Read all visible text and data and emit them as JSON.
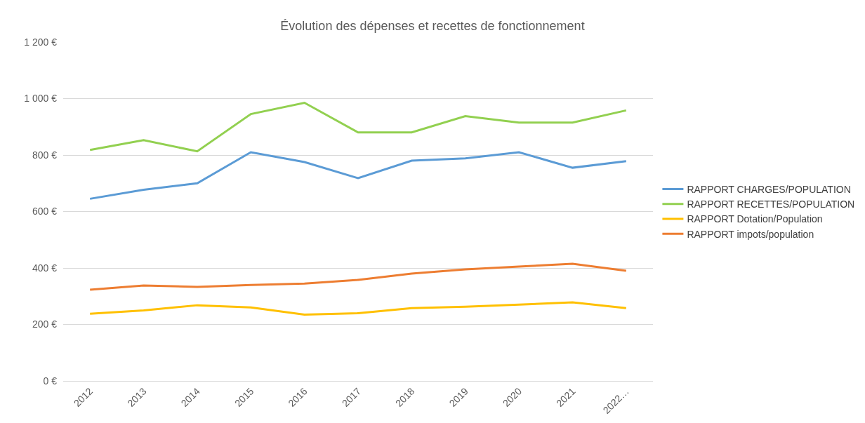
{
  "chart_data": {
    "type": "line",
    "title": "Évolution des dépenses et recettes de fonctionnement",
    "categories": [
      "2012",
      "2013",
      "2014",
      "2015",
      "2016",
      "2017",
      "2018",
      "2019",
      "2020",
      "2021",
      "2022…"
    ],
    "series": [
      {
        "name": "RAPPORT CHARGES/POPULATION",
        "color": "#5b9bd5",
        "values": [
          645,
          677,
          700,
          810,
          775,
          718,
          780,
          788,
          810,
          755,
          778
        ]
      },
      {
        "name": "RAPPORT RECETTES/POPULATION",
        "color": "#92d050",
        "values": [
          818,
          853,
          813,
          945,
          985,
          880,
          880,
          938,
          915,
          915,
          958
        ]
      },
      {
        "name": "RAPPORT Dotation/Population",
        "color": "#ffc000",
        "values": [
          238,
          250,
          268,
          260,
          235,
          240,
          258,
          263,
          270,
          278,
          258
        ]
      },
      {
        "name": "RAPPORT impots/population",
        "color": "#ed7d31",
        "values": [
          323,
          338,
          333,
          340,
          345,
          358,
          380,
          395,
          405,
          415,
          390
        ]
      }
    ],
    "ylim": [
      0,
      1200
    ],
    "yticks": [
      {
        "value": 0,
        "label": "0 €"
      },
      {
        "value": 200,
        "label": "200 €"
      },
      {
        "value": 400,
        "label": "400 €"
      },
      {
        "value": 600,
        "label": "600 €"
      },
      {
        "value": 800,
        "label": "800 €"
      },
      {
        "value": 1000,
        "label": "1 000 €"
      },
      {
        "value": 1200,
        "label": "1 200 €"
      }
    ],
    "grid": "y",
    "legend": "right",
    "marker": "none",
    "line_style": "solid"
  }
}
